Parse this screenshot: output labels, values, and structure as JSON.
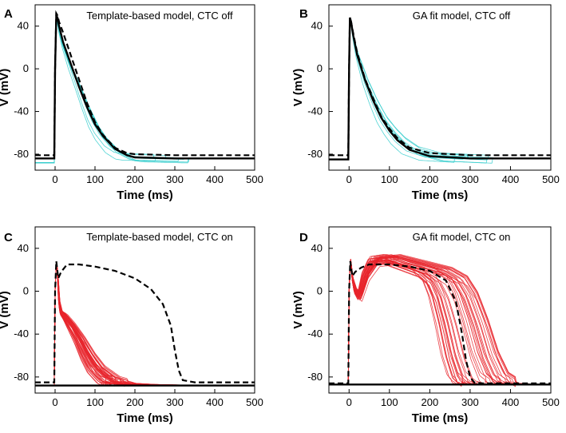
{
  "figure": {
    "colors": {
      "trace_cyan": "#33cccc",
      "trace_red": "#e8242b",
      "model_black": "#000000",
      "reference_dash": "#000000"
    }
  },
  "chart_data": [
    {
      "letter": "A",
      "type": "line",
      "title": "Template-based model, CTC off",
      "xlabel": "Time (ms)",
      "ylabel": "V (mV)",
      "xlim": [
        -50,
        500
      ],
      "ylim": [
        -95,
        60
      ],
      "xticks": [
        0,
        100,
        200,
        300,
        400,
        500
      ],
      "yticks": [
        40,
        0,
        -40,
        -80
      ],
      "trace_color": "#33cccc",
      "trace_count": 10,
      "series": [
        {
          "name": "recorded traces",
          "style": "thin",
          "color": "#33cccc",
          "x": [
            -50,
            -2,
            0,
            3,
            6,
            10,
            20,
            40,
            60,
            80,
            100,
            120,
            150,
            180,
            200,
            300,
            500
          ],
          "y": [
            -88,
            -88,
            0,
            45,
            44,
            36,
            22,
            2,
            -16,
            -35,
            -52,
            -64,
            -76,
            -82,
            -83,
            -84,
            -84
          ]
        },
        {
          "name": "model",
          "style": "solid",
          "color": "#000000",
          "x": [
            -50,
            -2,
            0,
            3,
            6,
            10,
            20,
            40,
            60,
            80,
            100,
            120,
            150,
            180,
            200,
            300,
            500
          ],
          "y": [
            -84,
            -84,
            0,
            50,
            48,
            40,
            25,
            4,
            -17,
            -36,
            -52,
            -63,
            -75,
            -81,
            -83,
            -84,
            -84
          ]
        },
        {
          "name": "reference",
          "style": "dashed",
          "color": "#000000",
          "x": [
            -50,
            -2,
            0,
            3,
            6,
            10,
            20,
            40,
            60,
            80,
            100,
            120,
            150,
            180,
            200,
            300,
            500
          ],
          "y": [
            -81,
            -81,
            0,
            52,
            50,
            44,
            34,
            12,
            -10,
            -32,
            -50,
            -62,
            -74,
            -79,
            -80,
            -81,
            -81
          ]
        }
      ]
    },
    {
      "letter": "B",
      "type": "line",
      "title": "GA fit model, CTC off",
      "xlabel": "Time (ms)",
      "ylabel": "V (mV)",
      "xlim": [
        -50,
        500
      ],
      "ylim": [
        -95,
        60
      ],
      "xticks": [
        0,
        100,
        200,
        300,
        400,
        500
      ],
      "yticks": [
        40,
        0,
        -40,
        -80
      ],
      "trace_color": "#33cccc",
      "trace_count": 10,
      "series": [
        {
          "name": "recorded traces",
          "style": "thin",
          "color": "#33cccc",
          "x": [
            -50,
            -2,
            0,
            2,
            5,
            10,
            20,
            40,
            60,
            80,
            100,
            120,
            150,
            200,
            300,
            500
          ],
          "y": [
            -85,
            -85,
            0,
            45,
            42,
            30,
            12,
            -12,
            -31,
            -47,
            -58,
            -67,
            -76,
            -82,
            -84,
            -84
          ]
        },
        {
          "name": "model",
          "style": "solid",
          "color": "#000000",
          "x": [
            -50,
            -2,
            0,
            2,
            5,
            10,
            20,
            40,
            60,
            80,
            100,
            120,
            150,
            200,
            300,
            500
          ],
          "y": [
            -85,
            -85,
            0,
            48,
            44,
            32,
            13,
            -11,
            -30,
            -46,
            -58,
            -67,
            -76,
            -82,
            -84,
            -84
          ]
        },
        {
          "name": "reference",
          "style": "dashed",
          "color": "#000000",
          "x": [
            -50,
            -2,
            0,
            2,
            5,
            10,
            20,
            40,
            60,
            80,
            100,
            120,
            150,
            200,
            300,
            500
          ],
          "y": [
            -81,
            -81,
            0,
            47,
            44,
            34,
            15,
            -10,
            -28,
            -45,
            -56,
            -65,
            -74,
            -79,
            -81,
            -81
          ]
        }
      ]
    },
    {
      "letter": "C",
      "type": "line",
      "title": "Template-based model, CTC on",
      "xlabel": "Time (ms)",
      "ylabel": "V (mV)",
      "xlim": [
        -50,
        500
      ],
      "ylim": [
        -95,
        60
      ],
      "xticks": [
        0,
        100,
        200,
        300,
        400,
        500
      ],
      "yticks": [
        40,
        0,
        -40,
        -80
      ],
      "trace_color": "#e8242b",
      "trace_count": 40,
      "series": [
        {
          "name": "recorded traces",
          "style": "thin",
          "color": "#e8242b",
          "x": [
            -50,
            -2,
            0,
            3,
            6,
            10,
            15,
            25,
            40,
            60,
            80,
            100,
            130,
            160,
            200,
            300,
            500
          ],
          "y": [
            -88,
            -88,
            0,
            28,
            18,
            -10,
            -20,
            -24,
            -32,
            -45,
            -60,
            -72,
            -82,
            -86,
            -87,
            -88,
            -88
          ]
        },
        {
          "name": "model",
          "style": "solid",
          "color": "#000000",
          "x": [
            -50,
            -2,
            0,
            500
          ],
          "y": [
            -88,
            -88,
            -88,
            -88
          ]
        },
        {
          "name": "reference",
          "style": "dashed",
          "color": "#000000",
          "x": [
            -50,
            -2,
            0,
            3,
            8,
            15,
            30,
            60,
            100,
            150,
            200,
            240,
            270,
            290,
            300,
            310,
            320,
            350,
            500
          ],
          "y": [
            -85,
            -85,
            0,
            28,
            12,
            18,
            25,
            25,
            23,
            19,
            12,
            2,
            -12,
            -32,
            -55,
            -74,
            -83,
            -85,
            -85
          ]
        }
      ]
    },
    {
      "letter": "D",
      "type": "line",
      "title": "GA fit model, CTC on",
      "xlabel": "Time (ms)",
      "ylabel": "V (mV)",
      "xlim": [
        -50,
        500
      ],
      "ylim": [
        -95,
        60
      ],
      "xticks": [
        0,
        100,
        200,
        300,
        400,
        500
      ],
      "yticks": [
        40,
        0,
        -40,
        -80
      ],
      "trace_color": "#e8242b",
      "trace_count": 40,
      "series": [
        {
          "name": "recorded traces",
          "style": "thin",
          "color": "#e8242b",
          "x": [
            -50,
            -2,
            0,
            3,
            8,
            15,
            25,
            40,
            60,
            100,
            150,
            200,
            230,
            250,
            270,
            290,
            310,
            330,
            360,
            500
          ],
          "y": [
            -87,
            -87,
            0,
            32,
            12,
            0,
            -5,
            15,
            28,
            30,
            24,
            18,
            10,
            -5,
            -30,
            -60,
            -80,
            -86,
            -87,
            -87
          ]
        },
        {
          "name": "model",
          "style": "solid",
          "color": "#000000",
          "x": [
            -50,
            -2,
            0,
            500
          ],
          "y": [
            -87,
            -87,
            -87,
            -87
          ]
        },
        {
          "name": "reference",
          "style": "dashed",
          "color": "#000000",
          "x": [
            -50,
            -2,
            0,
            3,
            8,
            15,
            30,
            50,
            100,
            150,
            200,
            240,
            265,
            280,
            290,
            300,
            310,
            330,
            500
          ],
          "y": [
            -86,
            -86,
            0,
            28,
            14,
            18,
            22,
            25,
            25,
            23,
            19,
            10,
            -10,
            -40,
            -65,
            -80,
            -85,
            -86,
            -86
          ]
        }
      ]
    }
  ]
}
